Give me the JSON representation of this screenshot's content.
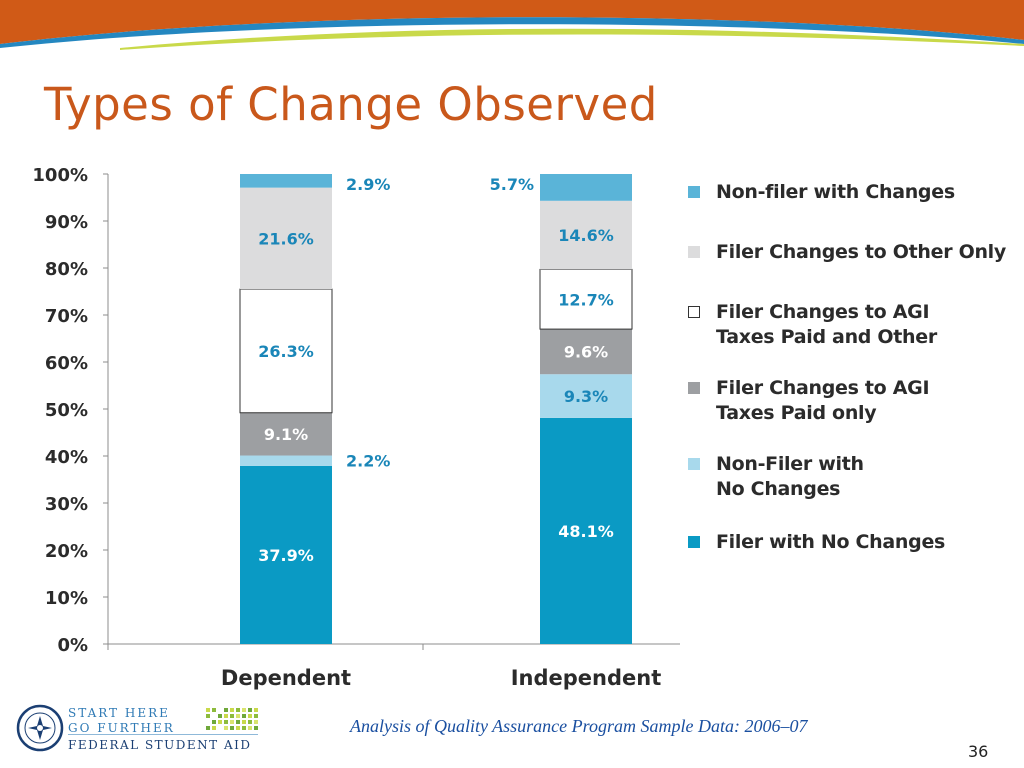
{
  "slide": {
    "title": "Types of Change Observed",
    "source": "Analysis of Quality Assurance Program Sample Data: 2006–07",
    "page_number": "36"
  },
  "logo": {
    "line1": "START HERE",
    "line2": "GO FURTHER",
    "line3": "FEDERAL STUDENT AID"
  },
  "colors": {
    "title": "#c9581b",
    "header_orange": "#d05a17",
    "header_blue": "#2487c0",
    "header_lime": "#c9d94a"
  },
  "chart_data": {
    "type": "bar",
    "stacked": true,
    "categories": [
      "Dependent",
      "Independent"
    ],
    "ylim": [
      0,
      100
    ],
    "yticks": [
      "0%",
      "10%",
      "20%",
      "30%",
      "40%",
      "50%",
      "60%",
      "70%",
      "80%",
      "90%",
      "100%"
    ],
    "legend_position": "right",
    "series": [
      {
        "name": "Filer with No Changes",
        "values": [
          37.9,
          48.1
        ],
        "labels": [
          "37.9%",
          "48.1%"
        ],
        "color": "#0a9ac4",
        "text_color": "#ffffff"
      },
      {
        "name": "Non-Filer with\nNo Changes",
        "values": [
          2.2,
          9.3
        ],
        "labels": [
          "2.2%",
          "9.3%"
        ],
        "color": "#a8d9ec",
        "text_color": "#1a86b8"
      },
      {
        "name": "Filer Changes to AGI\nTaxes Paid only",
        "values": [
          9.1,
          9.6
        ],
        "labels": [
          "9.1%",
          "9.6%"
        ],
        "color": "#9d9fa2",
        "text_color": "#ffffff"
      },
      {
        "name": "Filer Changes to AGI\nTaxes Paid and Other",
        "values": [
          26.3,
          12.7
        ],
        "labels": [
          "26.3%",
          "12.7%"
        ],
        "color": "#ffffff",
        "text_color": "#1a86b8"
      },
      {
        "name": "Filer Changes to Other Only",
        "values": [
          21.6,
          14.6
        ],
        "labels": [
          "21.6%",
          "14.6%"
        ],
        "color": "#dcdcdd",
        "text_color": "#1a86b8"
      },
      {
        "name": "Non-filer with Changes",
        "values": [
          2.9,
          5.7
        ],
        "labels": [
          "2.9%",
          "5.7%"
        ],
        "color": "#5ab4d8",
        "text_color": "#1a86b8"
      }
    ]
  }
}
